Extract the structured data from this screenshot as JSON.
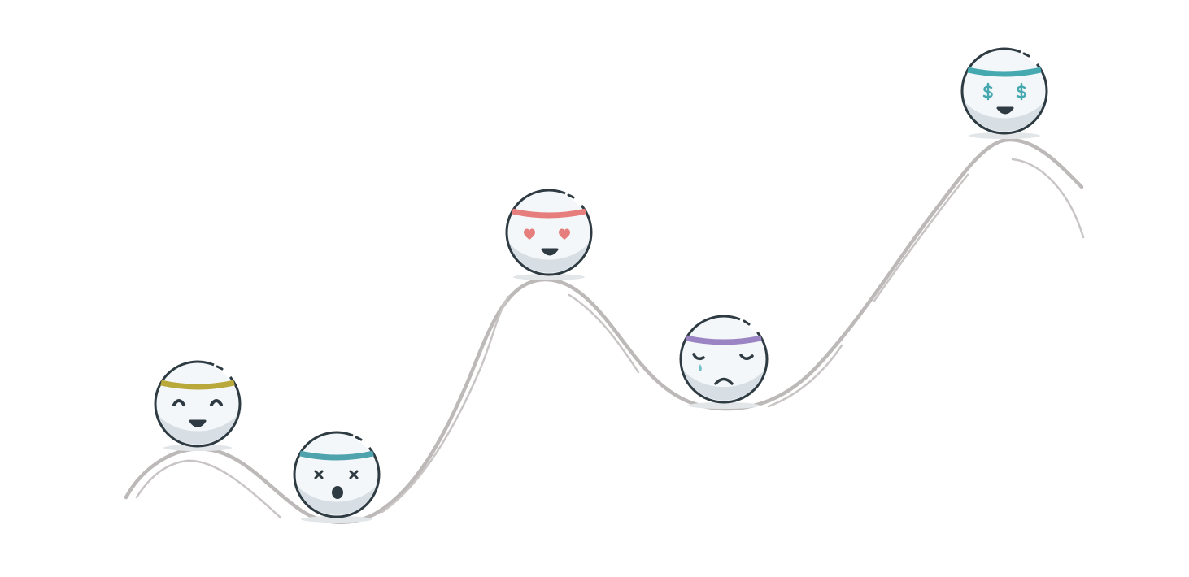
{
  "palette": {
    "background": "#ffffff",
    "track": "#bdb9b9",
    "track_shadow": "#c9c5c5",
    "ball_fill": "#f4f7f9",
    "ball_shade": "#d7dfe5",
    "outline": "#2e3b42",
    "contact_shadow": "#e3e6e8"
  },
  "track": {
    "icon": "wavy-track-line"
  },
  "balls": [
    {
      "name": "ball-happy",
      "mood": "happy",
      "headband_color": "#b9a83a",
      "eyes": "closed-smile",
      "mouth": "smile",
      "icon": "happy-face-icon"
    },
    {
      "name": "ball-dizzy",
      "mood": "dizzy",
      "headband_color": "#4fa3ad",
      "eyes": "x",
      "mouth": "open",
      "icon": "dizzy-face-icon"
    },
    {
      "name": "ball-love",
      "mood": "in-love",
      "headband_color": "#e57e7c",
      "eyes": "heart",
      "eye_color": "#e57e7c",
      "mouth": "smile",
      "icon": "heart-eyes-face-icon"
    },
    {
      "name": "ball-sad",
      "mood": "sad",
      "headband_color": "#9a84c4",
      "eyes": "worried",
      "mouth": "frown",
      "tear_color": "#6fc0c9",
      "icon": "crying-face-icon"
    },
    {
      "name": "ball-rich",
      "mood": "rich",
      "headband_color": "#46a9b0",
      "eyes": "dollar",
      "eye_color": "#46a9b0",
      "mouth": "smile",
      "icon": "dollar-eyes-face-icon"
    }
  ]
}
